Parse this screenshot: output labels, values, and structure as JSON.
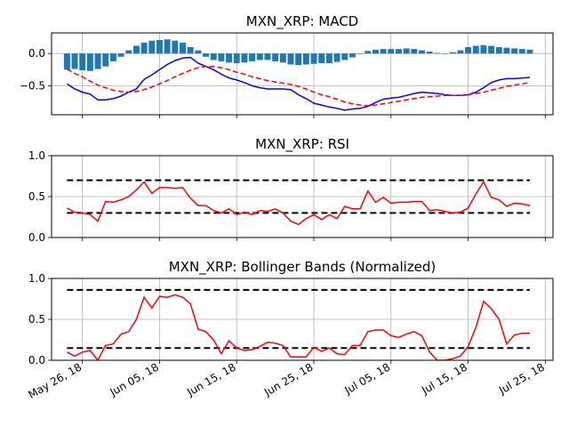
{
  "chart_data": [
    {
      "type": "bar+line",
      "title": "MXN_XRP: MACD",
      "ylim": [
        -0.95,
        0.32
      ],
      "yticks": [
        0.0,
        -0.5
      ],
      "ytick_labels": [
        "0.0",
        "−0.5"
      ],
      "grid": true,
      "colors": {
        "histogram": "#1f77b4",
        "macd": "#0000ff",
        "signal": "#ff0000"
      },
      "x": [
        "2018-05-24",
        "2018-05-25",
        "2018-05-26",
        "2018-05-27",
        "2018-05-28",
        "2018-05-29",
        "2018-05-30",
        "2018-05-31",
        "2018-06-01",
        "2018-06-02",
        "2018-06-03",
        "2018-06-04",
        "2018-06-05",
        "2018-06-06",
        "2018-06-07",
        "2018-06-08",
        "2018-06-09",
        "2018-06-10",
        "2018-06-11",
        "2018-06-12",
        "2018-06-13",
        "2018-06-14",
        "2018-06-15",
        "2018-06-16",
        "2018-06-17",
        "2018-06-18",
        "2018-06-19",
        "2018-06-20",
        "2018-06-21",
        "2018-06-22",
        "2018-06-23",
        "2018-06-24",
        "2018-06-25",
        "2018-06-26",
        "2018-06-27",
        "2018-06-28",
        "2018-06-29",
        "2018-06-30",
        "2018-07-01",
        "2018-07-02",
        "2018-07-03",
        "2018-07-04",
        "2018-07-05",
        "2018-07-06",
        "2018-07-07",
        "2018-07-08",
        "2018-07-09",
        "2018-07-10",
        "2018-07-11",
        "2018-07-12",
        "2018-07-13",
        "2018-07-14",
        "2018-07-15",
        "2018-07-16",
        "2018-07-17",
        "2018-07-18",
        "2018-07-19",
        "2018-07-20",
        "2018-07-21",
        "2018-07-22",
        "2018-07-23"
      ],
      "series": [
        {
          "kind": "bar",
          "values": [
            -0.25,
            -0.24,
            -0.26,
            -0.27,
            -0.24,
            -0.2,
            -0.12,
            -0.05,
            0.05,
            0.12,
            0.17,
            0.2,
            0.21,
            0.22,
            0.2,
            0.17,
            0.1,
            0.05,
            -0.05,
            -0.1,
            -0.12,
            -0.14,
            -0.15,
            -0.14,
            -0.12,
            -0.1,
            -0.1,
            -0.12,
            -0.14,
            -0.17,
            -0.18,
            -0.17,
            -0.16,
            -0.15,
            -0.15,
            -0.13,
            -0.1,
            -0.06,
            0.0,
            0.04,
            0.06,
            0.07,
            0.07,
            0.07,
            0.08,
            0.07,
            0.05,
            0.03,
            0.01,
            0.0,
            0.02,
            0.05,
            0.1,
            0.12,
            0.13,
            0.12,
            0.1,
            0.09,
            0.08,
            0.07,
            0.06
          ]
        },
        {
          "kind": "line",
          "values": [
            -0.47,
            -0.55,
            -0.6,
            -0.63,
            -0.72,
            -0.72,
            -0.7,
            -0.66,
            -0.6,
            -0.55,
            -0.4,
            -0.33,
            -0.25,
            -0.17,
            -0.11,
            -0.07,
            -0.06,
            -0.15,
            -0.2,
            -0.25,
            -0.32,
            -0.38,
            -0.41,
            -0.45,
            -0.5,
            -0.53,
            -0.55,
            -0.55,
            -0.55,
            -0.56,
            -0.64,
            -0.7,
            -0.77,
            -0.8,
            -0.83,
            -0.85,
            -0.88,
            -0.86,
            -0.85,
            -0.82,
            -0.76,
            -0.71,
            -0.69,
            -0.68,
            -0.65,
            -0.62,
            -0.6,
            -0.61,
            -0.62,
            -0.64,
            -0.65,
            -0.65,
            -0.64,
            -0.6,
            -0.53,
            -0.45,
            -0.41,
            -0.39,
            -0.39,
            -0.38,
            -0.37
          ]
        },
        {
          "kind": "line",
          "style": "dashed",
          "values": [
            -0.24,
            -0.31,
            -0.36,
            -0.43,
            -0.49,
            -0.53,
            -0.57,
            -0.59,
            -0.6,
            -0.59,
            -0.56,
            -0.52,
            -0.47,
            -0.42,
            -0.36,
            -0.31,
            -0.26,
            -0.22,
            -0.2,
            -0.2,
            -0.22,
            -0.25,
            -0.29,
            -0.32,
            -0.36,
            -0.39,
            -0.42,
            -0.44,
            -0.46,
            -0.48,
            -0.51,
            -0.55,
            -0.6,
            -0.64,
            -0.67,
            -0.71,
            -0.75,
            -0.78,
            -0.8,
            -0.81,
            -0.8,
            -0.78,
            -0.76,
            -0.74,
            -0.72,
            -0.7,
            -0.68,
            -0.67,
            -0.66,
            -0.65,
            -0.65,
            -0.65,
            -0.64,
            -0.62,
            -0.6,
            -0.57,
            -0.54,
            -0.51,
            -0.49,
            -0.47,
            -0.45
          ]
        }
      ]
    },
    {
      "type": "line",
      "title": "MXN_XRP: RSI",
      "ylim": [
        0.0,
        1.0
      ],
      "yticks": [
        0.0,
        0.5,
        1.0
      ],
      "ytick_labels": [
        "0.0",
        "0.5",
        "1.0"
      ],
      "grid": true,
      "colors": {
        "line": "#ff0000",
        "bands": "#000000"
      },
      "reference_lines": [
        0.7,
        0.3
      ],
      "series": [
        {
          "values": [
            0.36,
            0.31,
            0.3,
            0.28,
            0.2,
            0.44,
            0.43,
            0.46,
            0.5,
            0.58,
            0.68,
            0.54,
            0.61,
            0.61,
            0.6,
            0.61,
            0.48,
            0.39,
            0.39,
            0.33,
            0.3,
            0.35,
            0.28,
            0.31,
            0.28,
            0.33,
            0.32,
            0.35,
            0.3,
            0.2,
            0.16,
            0.23,
            0.28,
            0.22,
            0.28,
            0.23,
            0.38,
            0.35,
            0.35,
            0.57,
            0.43,
            0.49,
            0.42,
            0.43,
            0.43,
            0.44,
            0.44,
            0.33,
            0.34,
            0.32,
            0.3,
            0.31,
            0.36,
            0.53,
            0.68,
            0.49,
            0.46,
            0.38,
            0.42,
            0.41,
            0.39
          ]
        }
      ]
    },
    {
      "type": "line",
      "title": "MXN_XRP: Bollinger Bands (Normalized)",
      "ylim": [
        0.0,
        1.0
      ],
      "yticks": [
        0.0,
        0.5,
        1.0
      ],
      "ytick_labels": [
        "0.0",
        "0.5",
        "1.0"
      ],
      "grid": true,
      "colors": {
        "line": "#ff0000",
        "bands": "#000000"
      },
      "reference_lines": [
        0.86,
        0.15
      ],
      "series": [
        {
          "values": [
            0.1,
            0.05,
            0.1,
            0.12,
            0.0,
            0.18,
            0.2,
            0.32,
            0.35,
            0.5,
            0.77,
            0.64,
            0.78,
            0.77,
            0.8,
            0.77,
            0.69,
            0.38,
            0.35,
            0.25,
            0.08,
            0.24,
            0.15,
            0.12,
            0.13,
            0.17,
            0.22,
            0.21,
            0.18,
            0.04,
            0.04,
            0.04,
            0.16,
            0.11,
            0.15,
            0.08,
            0.07,
            0.18,
            0.18,
            0.35,
            0.37,
            0.37,
            0.3,
            0.28,
            0.32,
            0.35,
            0.3,
            0.1,
            0.0,
            0.0,
            0.02,
            0.05,
            0.17,
            0.4,
            0.72,
            0.63,
            0.5,
            0.2,
            0.31,
            0.33,
            0.33
          ]
        }
      ]
    }
  ],
  "x_axis": {
    "tick_labels": [
      "May 26, 18",
      "Jun 05, 18",
      "Jun 15, 18",
      "Jun 25, 18",
      "Jul 05, 18",
      "Jul 15, 18",
      "Jul 25, 18"
    ],
    "tick_dates": [
      "2018-05-26",
      "2018-06-05",
      "2018-06-15",
      "2018-06-25",
      "2018-07-05",
      "2018-07-15",
      "2018-07-25"
    ],
    "range": [
      "2018-05-22",
      "2018-07-26"
    ]
  }
}
